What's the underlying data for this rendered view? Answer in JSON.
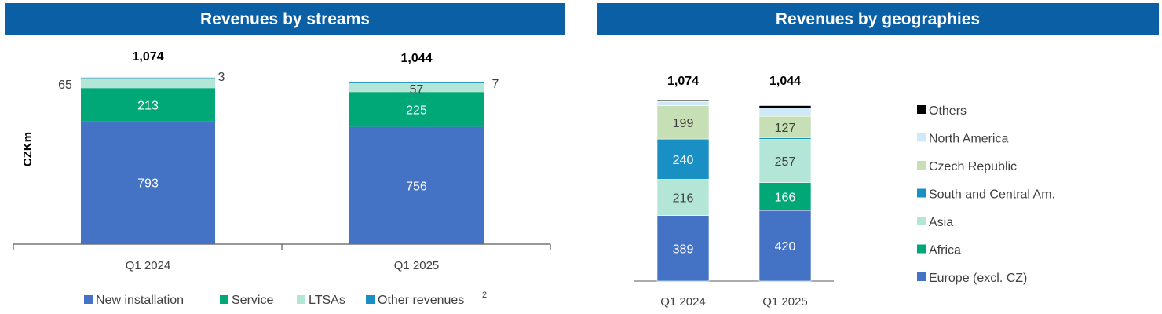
{
  "panels": {
    "left_title": "Revenues by streams",
    "right_title": "Revenues by geographies"
  },
  "colors": {
    "header": "#0b5fa5",
    "new_installation": "#4472c4",
    "service": "#00a878",
    "ltsas": "#b3e6d6",
    "other_revenues": "#1a8fc4",
    "europe": "#4472c4",
    "africa": "#00a878",
    "asia": "#b3e6d6",
    "south_central": "#1a8fc4",
    "czech": "#c6dfb4",
    "north_america": "#cfe9f7",
    "others": "#000000"
  },
  "chart_data": [
    {
      "type": "bar",
      "stacked": true,
      "title": "Revenues by streams",
      "ylabel": "CZKm",
      "categories": [
        "Q1 2024",
        "Q1 2025"
      ],
      "totals": [
        "1,074",
        "1,044"
      ],
      "series": [
        {
          "name": "New installation",
          "values": [
            793,
            756
          ],
          "labels": [
            "793",
            "756"
          ]
        },
        {
          "name": "Service",
          "values": [
            213,
            225
          ],
          "labels": [
            "213",
            "225"
          ]
        },
        {
          "name": "LTSAs",
          "values": [
            65,
            57
          ],
          "labels": [
            "65",
            "57"
          ]
        },
        {
          "name": "Other revenues",
          "values": [
            3,
            7
          ],
          "labels": [
            "3",
            "7"
          ]
        }
      ],
      "legend_superscript": "2",
      "legend_position": "bottom"
    },
    {
      "type": "bar",
      "stacked": true,
      "title": "Revenues by geographies",
      "categories": [
        "Q1 2024",
        "Q1 2025"
      ],
      "totals": [
        "1,074",
        "1,044"
      ],
      "series": [
        {
          "name": "Europe (excl. CZ)",
          "values": [
            389,
            420
          ],
          "labels": [
            "389",
            "420"
          ]
        },
        {
          "name": "Africa",
          "values": [
            0,
            166
          ],
          "labels": [
            "",
            "166"
          ]
        },
        {
          "name": "Asia",
          "values": [
            216,
            257
          ],
          "labels": [
            "216",
            "257"
          ]
        },
        {
          "name": "South and Central Am.",
          "values": [
            240,
            10
          ],
          "labels": [
            "240",
            ""
          ]
        },
        {
          "name": "Czech Republic",
          "values": [
            199,
            127
          ],
          "labels": [
            "199",
            "127"
          ]
        },
        {
          "name": "North America",
          "values": [
            25,
            51
          ],
          "labels": [
            "",
            ""
          ]
        },
        {
          "name": "Others",
          "values": [
            5,
            13
          ],
          "labels": [
            "",
            ""
          ]
        }
      ],
      "legend_position": "right"
    }
  ]
}
